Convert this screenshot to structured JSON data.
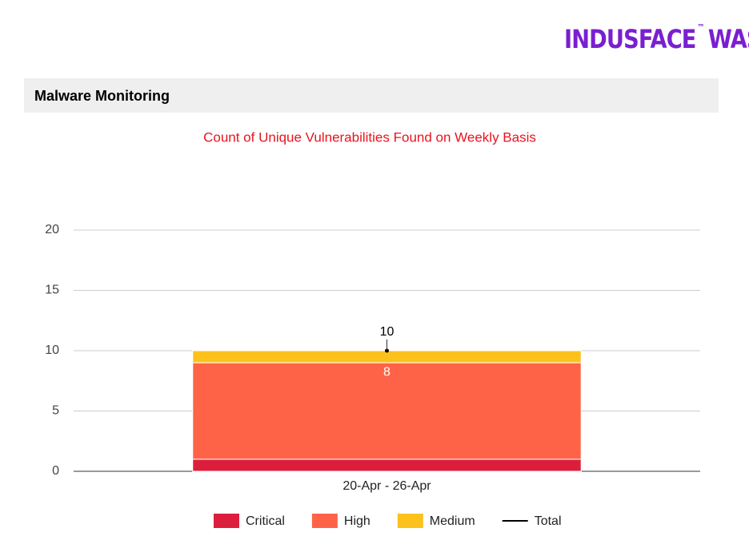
{
  "header": {
    "logo": "INDUSFACE",
    "trademark": "™",
    "logo_suffix": "WAS"
  },
  "section": {
    "title": "Malware Monitoring"
  },
  "chart_data": {
    "type": "bar",
    "stacked": true,
    "title": "Count of Unique Vulnerabilities Found on Weekly Basis",
    "categories": [
      "20-Apr - 26-Apr"
    ],
    "series": [
      {
        "name": "Critical",
        "color": "#dc1e3c",
        "values": [
          1
        ],
        "show_labels": true
      },
      {
        "name": "High",
        "color": "#ff6347",
        "values": [
          8
        ],
        "show_labels": true
      },
      {
        "name": "Medium",
        "color": "#fcc21b",
        "values": [
          1
        ],
        "show_labels": false
      },
      {
        "name": "Total",
        "type": "line",
        "color": "#000000",
        "values": [
          10
        ],
        "show_labels": true
      }
    ],
    "ylim": [
      0,
      20
    ],
    "yticks": [
      0,
      5,
      10,
      15,
      20
    ],
    "grid": true,
    "legend": "bottom"
  }
}
